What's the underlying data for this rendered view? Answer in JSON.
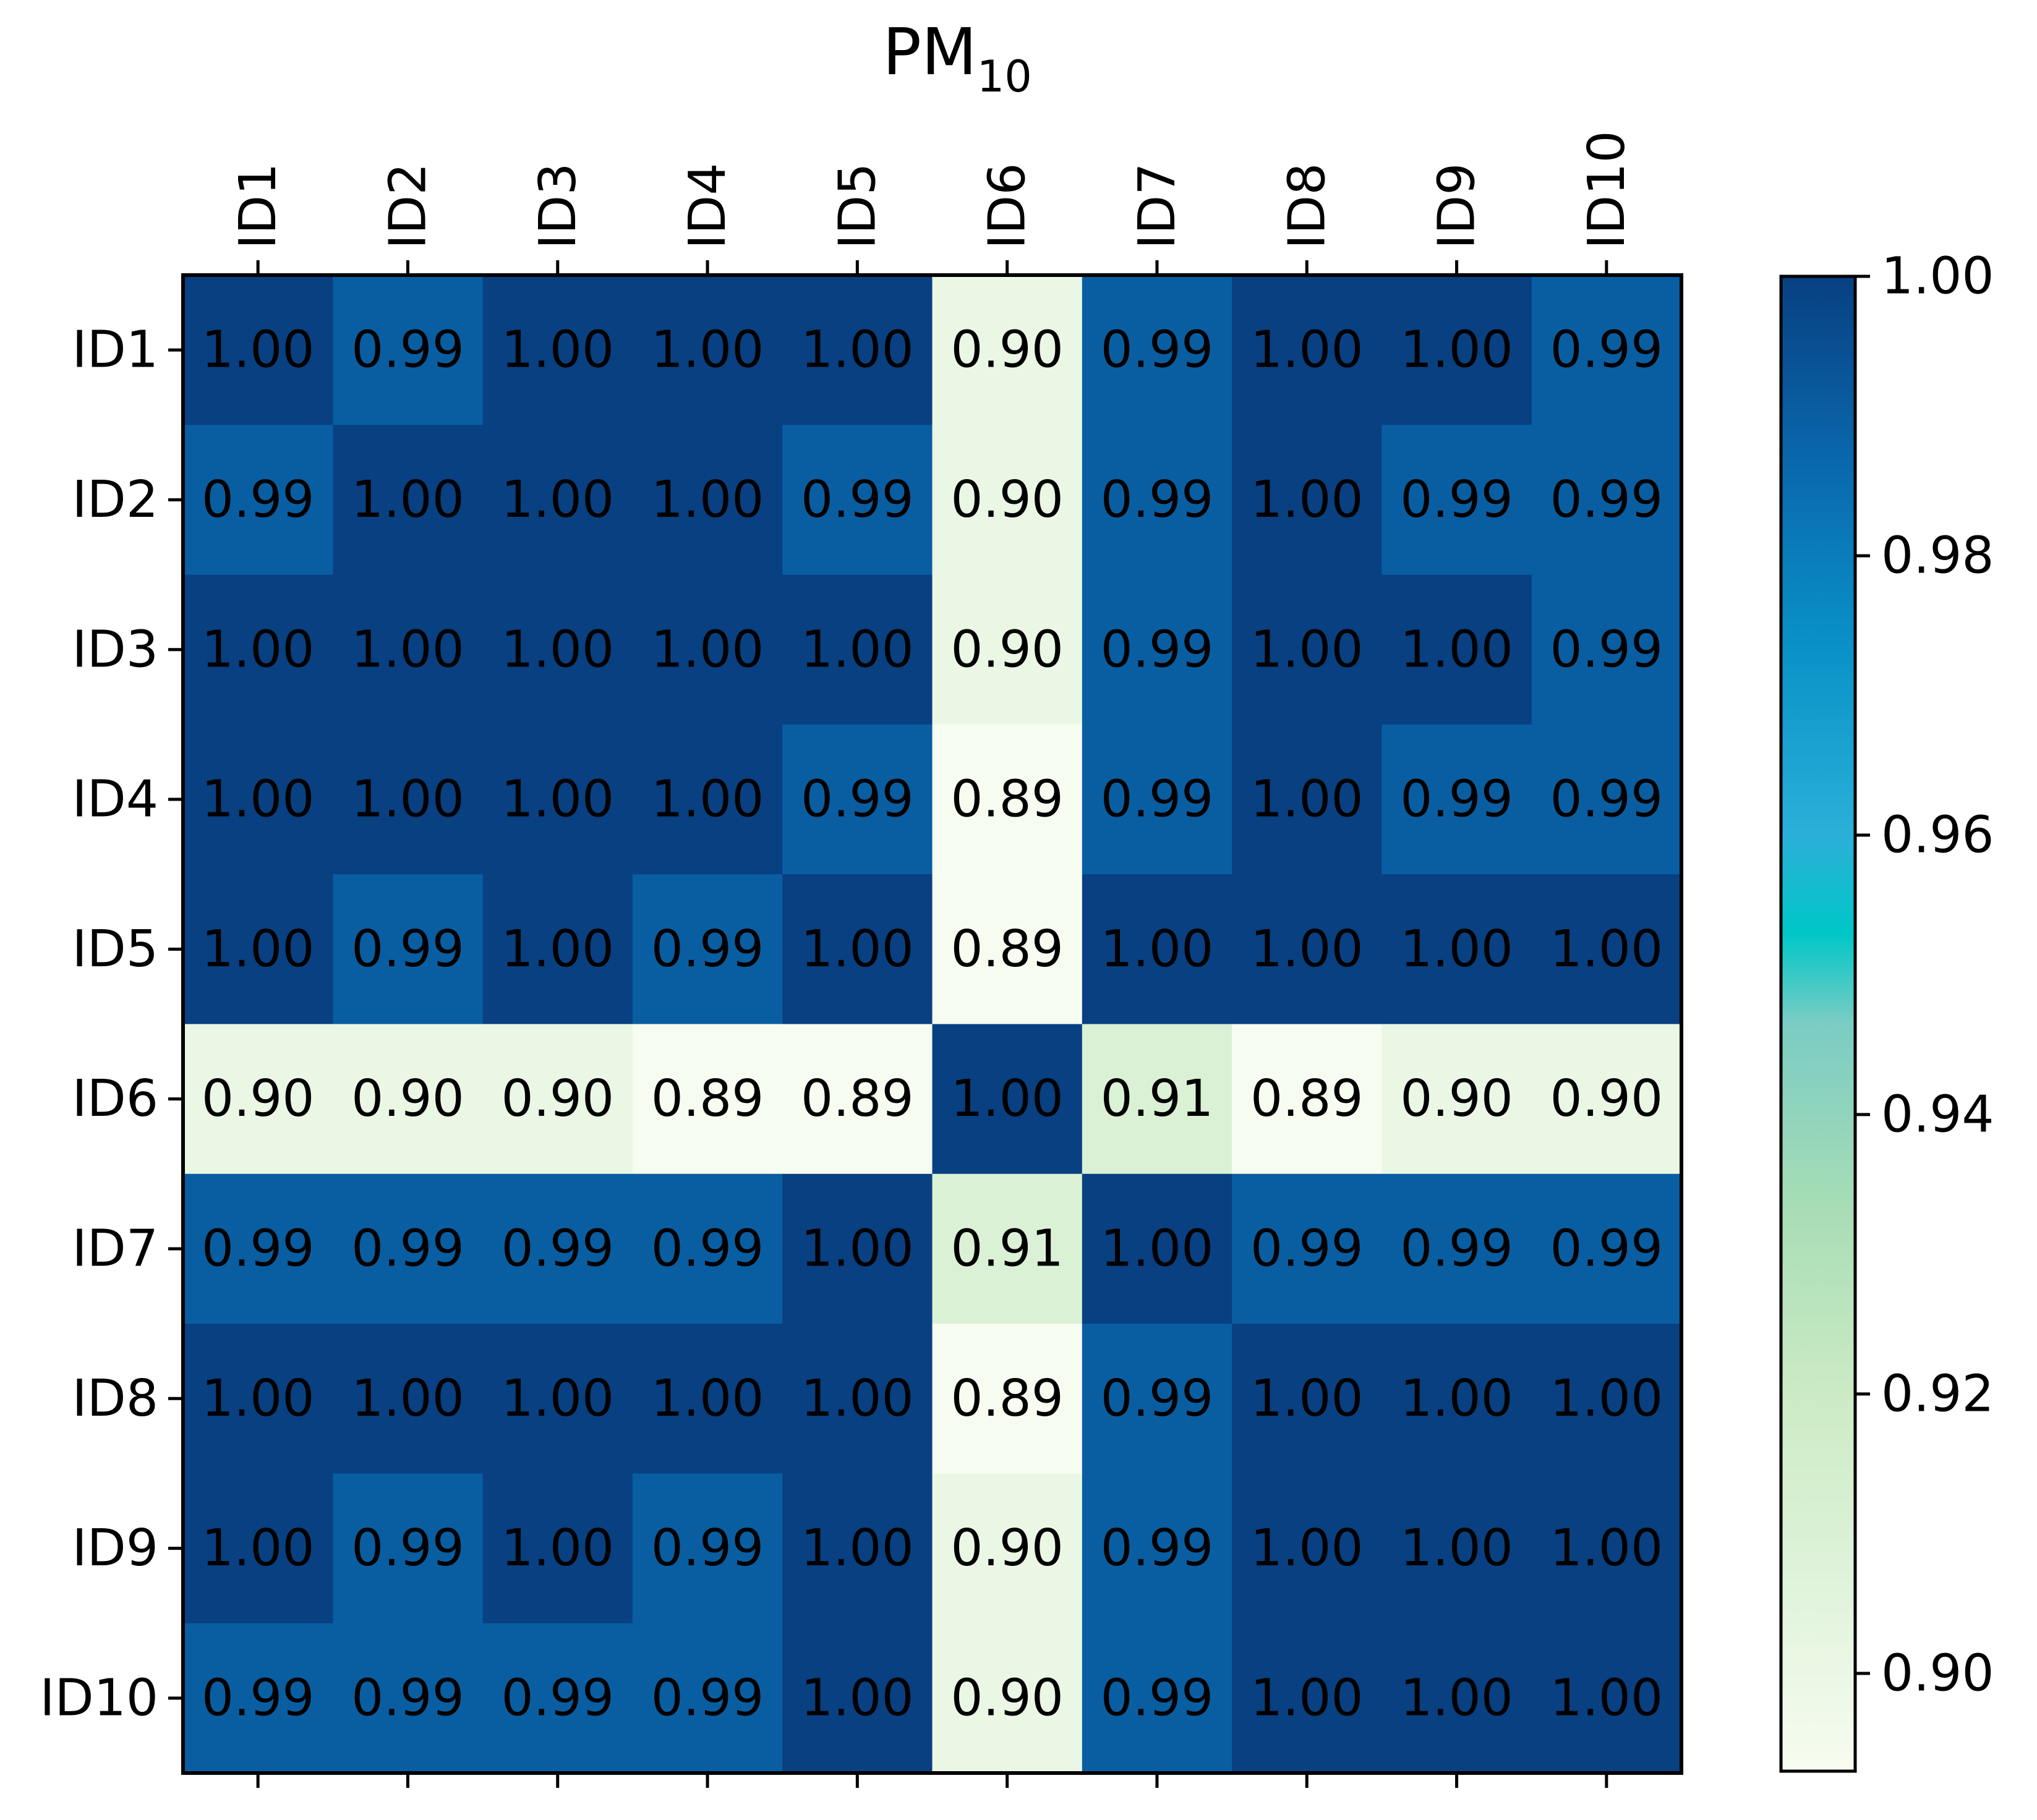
{
  "chart_data": {
    "type": "heatmap",
    "title": "PM",
    "title_subscript": "10",
    "x_labels": [
      "ID1",
      "ID2",
      "ID3",
      "ID4",
      "ID5",
      "ID6",
      "ID7",
      "ID8",
      "ID9",
      "ID10"
    ],
    "y_labels": [
      "ID1",
      "ID2",
      "ID3",
      "ID4",
      "ID5",
      "ID6",
      "ID7",
      "ID8",
      "ID9",
      "ID10"
    ],
    "values": [
      [
        1.0,
        0.99,
        1.0,
        1.0,
        1.0,
        0.9,
        0.99,
        1.0,
        1.0,
        0.99
      ],
      [
        0.99,
        1.0,
        1.0,
        1.0,
        0.99,
        0.9,
        0.99,
        1.0,
        0.99,
        0.99
      ],
      [
        1.0,
        1.0,
        1.0,
        1.0,
        1.0,
        0.9,
        0.99,
        1.0,
        1.0,
        0.99
      ],
      [
        1.0,
        1.0,
        1.0,
        1.0,
        0.99,
        0.89,
        0.99,
        1.0,
        0.99,
        0.99
      ],
      [
        1.0,
        0.99,
        1.0,
        0.99,
        1.0,
        0.89,
        1.0,
        1.0,
        1.0,
        1.0
      ],
      [
        0.9,
        0.9,
        0.9,
        0.89,
        0.89,
        1.0,
        0.91,
        0.89,
        0.9,
        0.9
      ],
      [
        0.99,
        0.99,
        0.99,
        0.99,
        1.0,
        0.91,
        1.0,
        0.99,
        0.99,
        0.99
      ],
      [
        1.0,
        1.0,
        1.0,
        1.0,
        1.0,
        0.89,
        0.99,
        1.0,
        1.0,
        1.0
      ],
      [
        1.0,
        0.99,
        1.0,
        0.99,
        1.0,
        0.9,
        0.99,
        1.0,
        1.0,
        1.0
      ],
      [
        0.99,
        0.99,
        0.99,
        0.99,
        1.0,
        0.9,
        0.99,
        1.0,
        1.0,
        1.0
      ]
    ],
    "colormap": "GnBu",
    "colorbar": {
      "range": [
        0.893,
        1.0
      ],
      "ticks": [
        0.9,
        0.92,
        0.94,
        0.96,
        0.98,
        1.0
      ],
      "tick_labels": [
        "0.90",
        "0.92",
        "0.94",
        "0.96",
        "0.98",
        "1.00"
      ],
      "placement": "right"
    },
    "x_tick_position": "top",
    "x_label_rotation": "vertical",
    "colors": {
      "low": "#f7fcf0",
      "high": "#084081"
    }
  }
}
